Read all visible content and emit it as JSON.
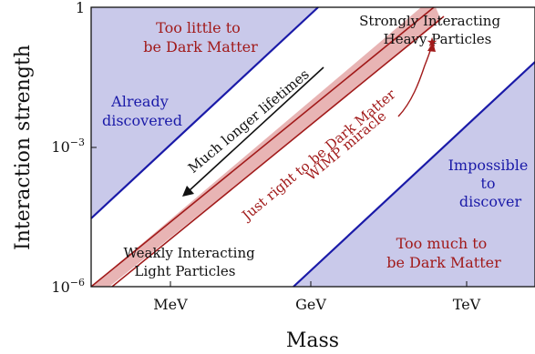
{
  "axes": {
    "xlabel": "Mass",
    "ylabel": "Interaction strength",
    "xticks": [
      "MeV",
      "GeV",
      "TeV"
    ],
    "yticks": [
      {
        "base": "1",
        "exp": ""
      },
      {
        "base": "10",
        "exp": "−3"
      },
      {
        "base": "10",
        "exp": "−6"
      }
    ]
  },
  "regions": {
    "too_little": [
      "Too little to",
      "be Dark Matter"
    ],
    "already_discovered": [
      "Already",
      "discovered"
    ],
    "impossible": [
      "Impossible",
      "to",
      "discover"
    ],
    "too_much": [
      "Too much to",
      "be Dark Matter"
    ],
    "just_right": "Just right to be Dark Matter",
    "longer_lifetimes": "Much longer lifetimes",
    "wimp_miracle": "WIMP miracle",
    "strongly": [
      "Strongly Interacting",
      "Heavy Particles"
    ],
    "weakly": [
      "Weakly Interacting",
      "Light Particles"
    ]
  },
  "colors": {
    "region_fill": "#c9c9ea",
    "boundary": "#1a1aa8",
    "dark_red": "#a11a1a",
    "band_fill": "#e8b4b4",
    "blue_text": "#1a1aa8",
    "black": "#111111"
  }
}
